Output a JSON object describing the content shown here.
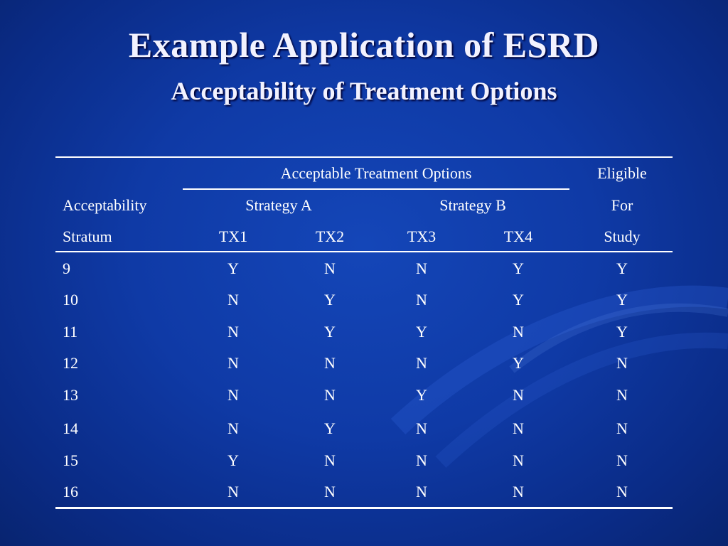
{
  "title": "Example Application of ESRD",
  "subtitle": "Acceptability of Treatment Options",
  "table": {
    "header": {
      "group_label": "Acceptable Treatment Options",
      "eligible_line1": "Eligible",
      "eligible_line2": "For",
      "eligible_line3": "Study",
      "acceptability_line1": "Acceptability",
      "acceptability_line2": "Stratum",
      "strategy_a": "Strategy A",
      "strategy_b": "Strategy B",
      "tx1": "TX1",
      "tx2": "TX2",
      "tx3": "TX3",
      "tx4": "TX4"
    },
    "rows": [
      [
        "9",
        "Y",
        "N",
        "N",
        "Y",
        "Y"
      ],
      [
        "10",
        "N",
        "Y",
        "N",
        "Y",
        "Y"
      ],
      [
        "11",
        "N",
        "Y",
        "Y",
        "N",
        "Y"
      ],
      [
        "12",
        "N",
        "N",
        "N",
        "Y",
        "N"
      ],
      [
        "13",
        "N",
        "N",
        "Y",
        "N",
        "N"
      ],
      [
        "14",
        "N",
        "Y",
        "N",
        "N",
        "N"
      ],
      [
        "15",
        "Y",
        "N",
        "N",
        "N",
        "N"
      ],
      [
        "16",
        "N",
        "N",
        "N",
        "N",
        "N"
      ]
    ]
  }
}
